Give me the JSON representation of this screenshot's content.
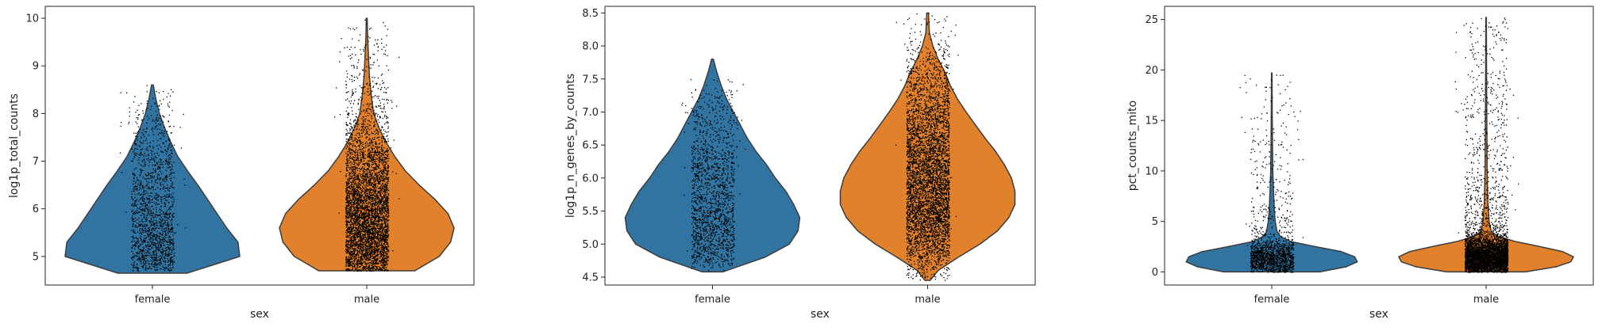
{
  "chart_data": [
    {
      "type": "violin",
      "xlabel": "sex",
      "ylabel": "log1p_total_counts",
      "categories": [
        "female",
        "male"
      ],
      "category_colors": [
        "#3274a1",
        "#e1812c"
      ],
      "ylim": [
        4.4,
        10.25
      ],
      "yticks": [
        5,
        6,
        7,
        8,
        9,
        10
      ],
      "grid": false,
      "series": [
        {
          "values_y": [
            4.65,
            5.0,
            5.3,
            5.6,
            5.9,
            6.2,
            6.5,
            6.8,
            7.1,
            7.4,
            7.7,
            8.0,
            8.3,
            8.6
          ],
          "values_halfwidth": [
            0.4,
            1.0,
            0.98,
            0.85,
            0.74,
            0.63,
            0.52,
            0.4,
            0.29,
            0.21,
            0.14,
            0.08,
            0.04,
            0.01
          ],
          "points_range": [
            4.7,
            8.6
          ]
        },
        {
          "values_y": [
            4.7,
            5.0,
            5.3,
            5.6,
            5.9,
            6.2,
            6.5,
            6.8,
            7.1,
            7.4,
            7.7,
            8.0,
            8.4,
            8.8,
            9.2,
            9.6,
            10.0
          ],
          "values_halfwidth": [
            0.55,
            0.83,
            0.96,
            1.0,
            0.93,
            0.78,
            0.6,
            0.44,
            0.32,
            0.22,
            0.14,
            0.08,
            0.05,
            0.03,
            0.02,
            0.01,
            0.005
          ],
          "points_range": [
            4.7,
            10.0
          ]
        }
      ]
    },
    {
      "type": "violin",
      "xlabel": "sex",
      "ylabel": "log1p_n_genes_by_counts",
      "categories": [
        "female",
        "male"
      ],
      "category_colors": [
        "#3274a1",
        "#e1812c"
      ],
      "ylim": [
        4.38,
        8.6
      ],
      "yticks": [
        4.5,
        5.0,
        5.5,
        6.0,
        6.5,
        7.0,
        7.5,
        8.0,
        8.5
      ],
      "grid": false,
      "series": [
        {
          "values_y": [
            4.58,
            4.8,
            5.0,
            5.2,
            5.4,
            5.6,
            5.8,
            6.0,
            6.2,
            6.4,
            6.6,
            6.8,
            7.0,
            7.2,
            7.4,
            7.6,
            7.8
          ],
          "values_halfwidth": [
            0.12,
            0.6,
            0.88,
            0.98,
            1.0,
            0.93,
            0.84,
            0.72,
            0.62,
            0.5,
            0.4,
            0.32,
            0.24,
            0.16,
            0.1,
            0.05,
            0.01
          ],
          "points_range": [
            4.6,
            7.5
          ]
        },
        {
          "values_y": [
            4.45,
            4.6,
            4.8,
            5.0,
            5.2,
            5.4,
            5.6,
            5.8,
            6.0,
            6.2,
            6.4,
            6.6,
            6.8,
            7.0,
            7.2,
            7.4,
            7.6,
            7.8,
            8.0,
            8.2,
            8.5
          ],
          "values_halfwidth": [
            0.03,
            0.12,
            0.35,
            0.6,
            0.8,
            0.93,
            1.0,
            1.0,
            0.96,
            0.88,
            0.78,
            0.66,
            0.55,
            0.44,
            0.34,
            0.26,
            0.2,
            0.12,
            0.06,
            0.02,
            0.01
          ],
          "points_range": [
            4.45,
            8.5
          ]
        }
      ]
    },
    {
      "type": "violin",
      "xlabel": "sex",
      "ylabel": "pct_counts_mito",
      "categories": [
        "female",
        "male"
      ],
      "category_colors": [
        "#3274a1",
        "#e1812c"
      ],
      "ylim": [
        -1.3,
        26.3
      ],
      "yticks": [
        0,
        5,
        10,
        15,
        20,
        25
      ],
      "grid": false,
      "series": [
        {
          "values_y": [
            0.0,
            0.5,
            1.0,
            1.5,
            2.0,
            2.5,
            3.0,
            3.5,
            4.0,
            5.0,
            6.0,
            7.0,
            8.0,
            10.0,
            13.0,
            16.0,
            19.7
          ],
          "values_halfwidth": [
            0.55,
            0.85,
            0.98,
            0.95,
            0.8,
            0.5,
            0.22,
            0.1,
            0.06,
            0.04,
            0.03,
            0.025,
            0.02,
            0.012,
            0.008,
            0.005,
            0.003
          ],
          "points_range": [
            0.0,
            19.7
          ]
        },
        {
          "values_y": [
            0.0,
            0.5,
            1.0,
            1.5,
            2.0,
            2.5,
            3.0,
            3.5,
            4.0,
            5.0,
            7.0,
            10.0,
            15.0,
            20.0,
            25.2
          ],
          "values_halfwidth": [
            0.45,
            0.8,
            0.97,
            1.0,
            0.88,
            0.62,
            0.34,
            0.14,
            0.06,
            0.035,
            0.02,
            0.012,
            0.008,
            0.005,
            0.003
          ],
          "points_range": [
            0.0,
            25.2
          ]
        }
      ]
    }
  ]
}
